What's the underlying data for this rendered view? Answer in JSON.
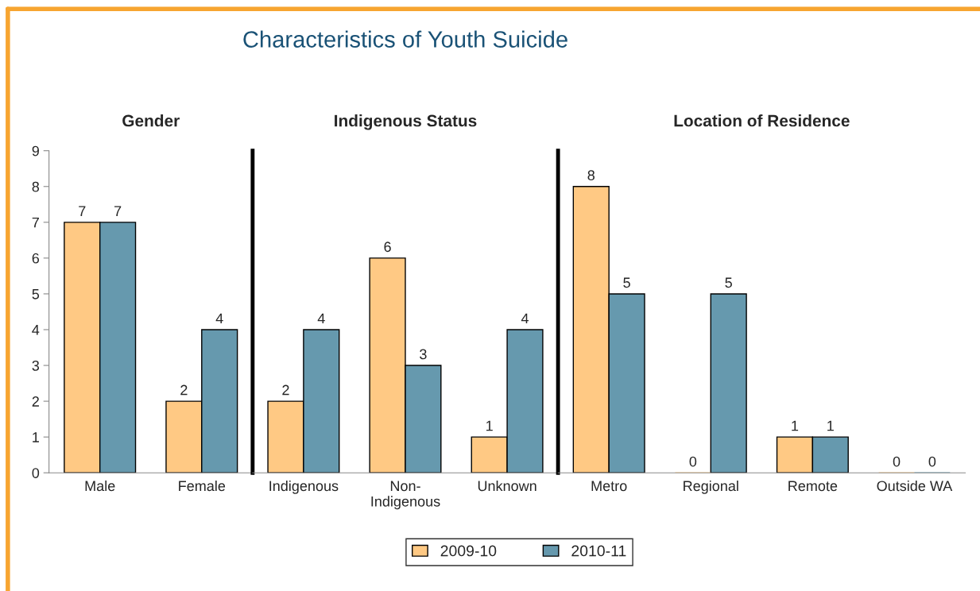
{
  "chart_data": [
    {
      "type": "bar",
      "subtitle": "Gender",
      "categories": [
        "Male",
        "Female"
      ],
      "ylim": [
        0,
        9
      ],
      "yticks": [
        0,
        1,
        2,
        3,
        4,
        5,
        6,
        7,
        8,
        9
      ],
      "data_labels": true,
      "grid": false,
      "legend": "bottom",
      "series": [
        {
          "name": "2009-10",
          "color": "#ffc984",
          "values": [
            7,
            2
          ]
        },
        {
          "name": "2010-11",
          "color": "#6699ae",
          "values": [
            7,
            4
          ]
        }
      ]
    },
    {
      "type": "bar",
      "title": "Characteristics of Youth Suicide",
      "subtitle": "Indigenous Status",
      "categories": [
        "Indigenous",
        "Non-\nIndigenous",
        "Unknown"
      ],
      "ylim": [
        0,
        9
      ],
      "tick_labels": "x",
      "data_labels": true,
      "grid": false,
      "legend": "bottom",
      "series": [
        {
          "name": "2009-10",
          "color": "#ffc984",
          "values": [
            2,
            6,
            1
          ]
        },
        {
          "name": "2010-11",
          "color": "#6699ae",
          "values": [
            4,
            3,
            4
          ]
        }
      ]
    },
    {
      "type": "bar",
      "subtitle": "Location of Residence",
      "categories": [
        "Metro",
        "Regional",
        "Remote",
        "Outside WA"
      ],
      "ylim": [
        0,
        9
      ],
      "tick_labels": "x",
      "data_labels": true,
      "grid": false,
      "legend": "bottom",
      "series": [
        {
          "name": "2009-10",
          "color": "#ffc984",
          "values": [
            8,
            0,
            1,
            0
          ]
        },
        {
          "name": "2010-11",
          "color": "#6699ae",
          "values": [
            5,
            5,
            1,
            0
          ]
        }
      ]
    }
  ]
}
